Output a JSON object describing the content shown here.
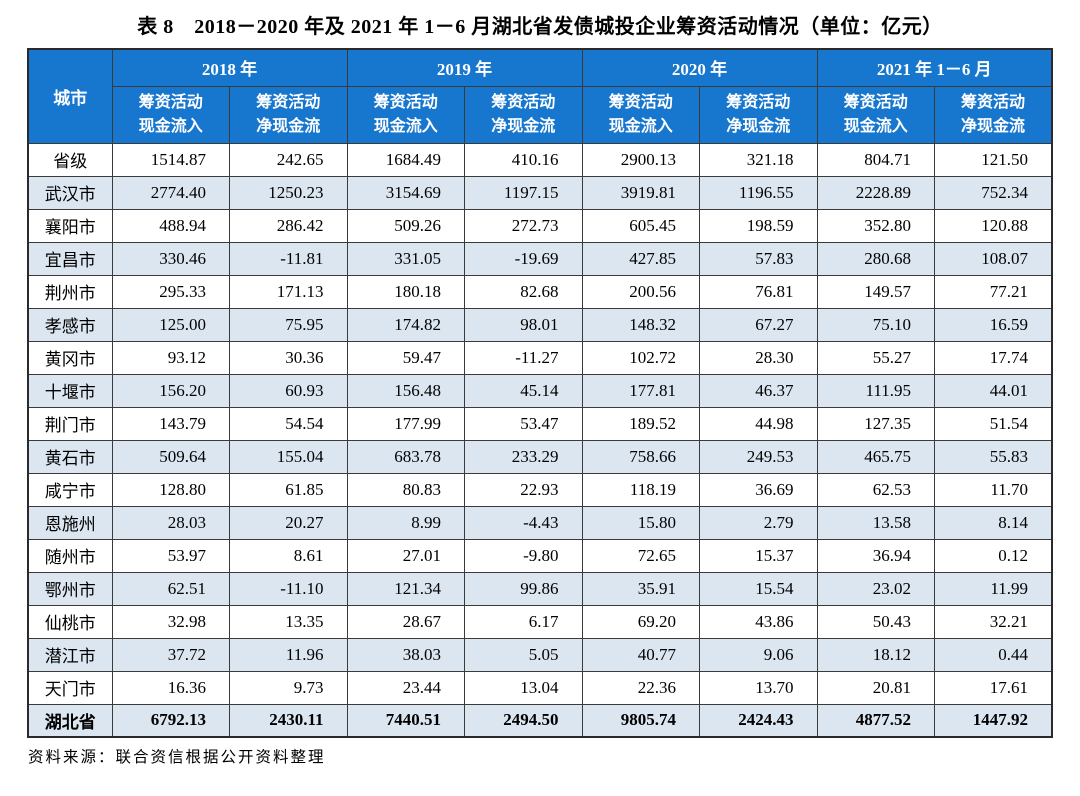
{
  "title": "表 8　2018－2020 年及 2021 年 1－6 月湖北省发债城投企业筹资活动情况（单位：亿元）",
  "source_note": "资料来源：联合资信根据公开资料整理",
  "colors": {
    "header_bg": "#1776CE",
    "header_text": "#FFFFFF",
    "alt_row_bg": "#DCE6F1",
    "border": "#3A3A3A"
  },
  "chart_data": {
    "type": "table",
    "title": "表 8　2018－2020 年及 2021 年 1－6 月湖北省发债城投企业筹资活动情况（单位：亿元）",
    "corner_header": "城市",
    "year_groups": [
      "2018 年",
      "2019 年",
      "2020 年",
      "2021 年 1－6 月"
    ],
    "sub_headers": [
      {
        "line1": "筹资活动",
        "line2": "现金流入"
      },
      {
        "line1": "筹资活动",
        "line2": "净现金流"
      }
    ],
    "rows": [
      {
        "city": "省级",
        "values": [
          "1514.87",
          "242.65",
          "1684.49",
          "410.16",
          "2900.13",
          "321.18",
          "804.71",
          "121.50"
        ]
      },
      {
        "city": "武汉市",
        "values": [
          "2774.40",
          "1250.23",
          "3154.69",
          "1197.15",
          "3919.81",
          "1196.55",
          "2228.89",
          "752.34"
        ]
      },
      {
        "city": "襄阳市",
        "values": [
          "488.94",
          "286.42",
          "509.26",
          "272.73",
          "605.45",
          "198.59",
          "352.80",
          "120.88"
        ]
      },
      {
        "city": "宜昌市",
        "values": [
          "330.46",
          "-11.81",
          "331.05",
          "-19.69",
          "427.85",
          "57.83",
          "280.68",
          "108.07"
        ]
      },
      {
        "city": "荆州市",
        "values": [
          "295.33",
          "171.13",
          "180.18",
          "82.68",
          "200.56",
          "76.81",
          "149.57",
          "77.21"
        ]
      },
      {
        "city": "孝感市",
        "values": [
          "125.00",
          "75.95",
          "174.82",
          "98.01",
          "148.32",
          "67.27",
          "75.10",
          "16.59"
        ]
      },
      {
        "city": "黄冈市",
        "values": [
          "93.12",
          "30.36",
          "59.47",
          "-11.27",
          "102.72",
          "28.30",
          "55.27",
          "17.74"
        ]
      },
      {
        "city": "十堰市",
        "values": [
          "156.20",
          "60.93",
          "156.48",
          "45.14",
          "177.81",
          "46.37",
          "111.95",
          "44.01"
        ]
      },
      {
        "city": "荆门市",
        "values": [
          "143.79",
          "54.54",
          "177.99",
          "53.47",
          "189.52",
          "44.98",
          "127.35",
          "51.54"
        ]
      },
      {
        "city": "黄石市",
        "values": [
          "509.64",
          "155.04",
          "683.78",
          "233.29",
          "758.66",
          "249.53",
          "465.75",
          "55.83"
        ]
      },
      {
        "city": "咸宁市",
        "values": [
          "128.80",
          "61.85",
          "80.83",
          "22.93",
          "118.19",
          "36.69",
          "62.53",
          "11.70"
        ]
      },
      {
        "city": "恩施州",
        "values": [
          "28.03",
          "20.27",
          "8.99",
          "-4.43",
          "15.80",
          "2.79",
          "13.58",
          "8.14"
        ]
      },
      {
        "city": "随州市",
        "values": [
          "53.97",
          "8.61",
          "27.01",
          "-9.80",
          "72.65",
          "15.37",
          "36.94",
          "0.12"
        ]
      },
      {
        "city": "鄂州市",
        "values": [
          "62.51",
          "-11.10",
          "121.34",
          "99.86",
          "35.91",
          "15.54",
          "23.02",
          "11.99"
        ]
      },
      {
        "city": "仙桃市",
        "values": [
          "32.98",
          "13.35",
          "28.67",
          "6.17",
          "69.20",
          "43.86",
          "50.43",
          "32.21"
        ]
      },
      {
        "city": "潜江市",
        "values": [
          "37.72",
          "11.96",
          "38.03",
          "5.05",
          "40.77",
          "9.06",
          "18.12",
          "0.44"
        ]
      },
      {
        "city": "天门市",
        "values": [
          "16.36",
          "9.73",
          "23.44",
          "13.04",
          "22.36",
          "13.70",
          "20.81",
          "17.61"
        ]
      }
    ],
    "total_row": {
      "city": "湖北省",
      "values": [
        "6792.13",
        "2430.11",
        "7440.51",
        "2494.50",
        "9805.74",
        "2424.43",
        "4877.52",
        "1447.92"
      ]
    }
  }
}
